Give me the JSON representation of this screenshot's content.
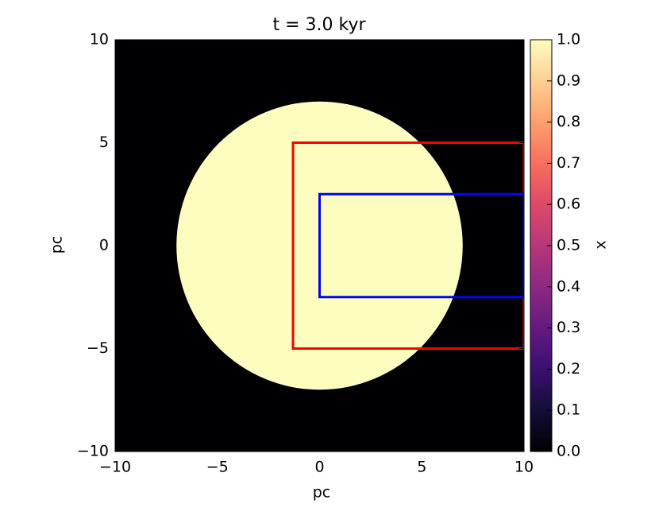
{
  "chart_data": {
    "type": "image",
    "title": "t = 3.0 kyr",
    "xlabel": "pc",
    "ylabel": "pc",
    "colorbar_label": "x",
    "colormap": "magma",
    "background_value": 0,
    "regions": [
      {
        "shape": "circle",
        "cx": 0,
        "cy": 0,
        "r": 7,
        "value": 1
      }
    ],
    "rectangles": [
      {
        "color": "#ff0000",
        "x0": -1.3,
        "x1": 10,
        "y0": -5,
        "y1": 5
      },
      {
        "color": "#0000ff",
        "x0": 0,
        "x1": 10,
        "y0": -2.5,
        "y1": 2.5
      }
    ],
    "xlim": [
      -10,
      10
    ],
    "ylim": [
      -10,
      10
    ],
    "xticks": [
      {
        "value": -10,
        "label": "−10"
      },
      {
        "value": -5,
        "label": "−5"
      },
      0,
      5,
      10
    ],
    "yticks": [
      {
        "value": -10,
        "label": "−10"
      },
      {
        "value": -5,
        "label": "−5"
      },
      0,
      5,
      10
    ],
    "clim": [
      0,
      1
    ],
    "cticks": [
      {
        "value": 0,
        "label": "0.0"
      },
      {
        "value": 0.1,
        "label": "0.1"
      },
      {
        "value": 0.2,
        "label": "0.2"
      },
      {
        "value": 0.3,
        "label": "0.3"
      },
      {
        "value": 0.4,
        "label": "0.4"
      },
      {
        "value": 0.5,
        "label": "0.5"
      },
      {
        "value": 0.6,
        "label": "0.6"
      },
      {
        "value": 0.7,
        "label": "0.7"
      },
      {
        "value": 0.8,
        "label": "0.8"
      },
      {
        "value": 0.9,
        "label": "0.9"
      },
      {
        "value": 1,
        "label": "1.0"
      }
    ]
  }
}
